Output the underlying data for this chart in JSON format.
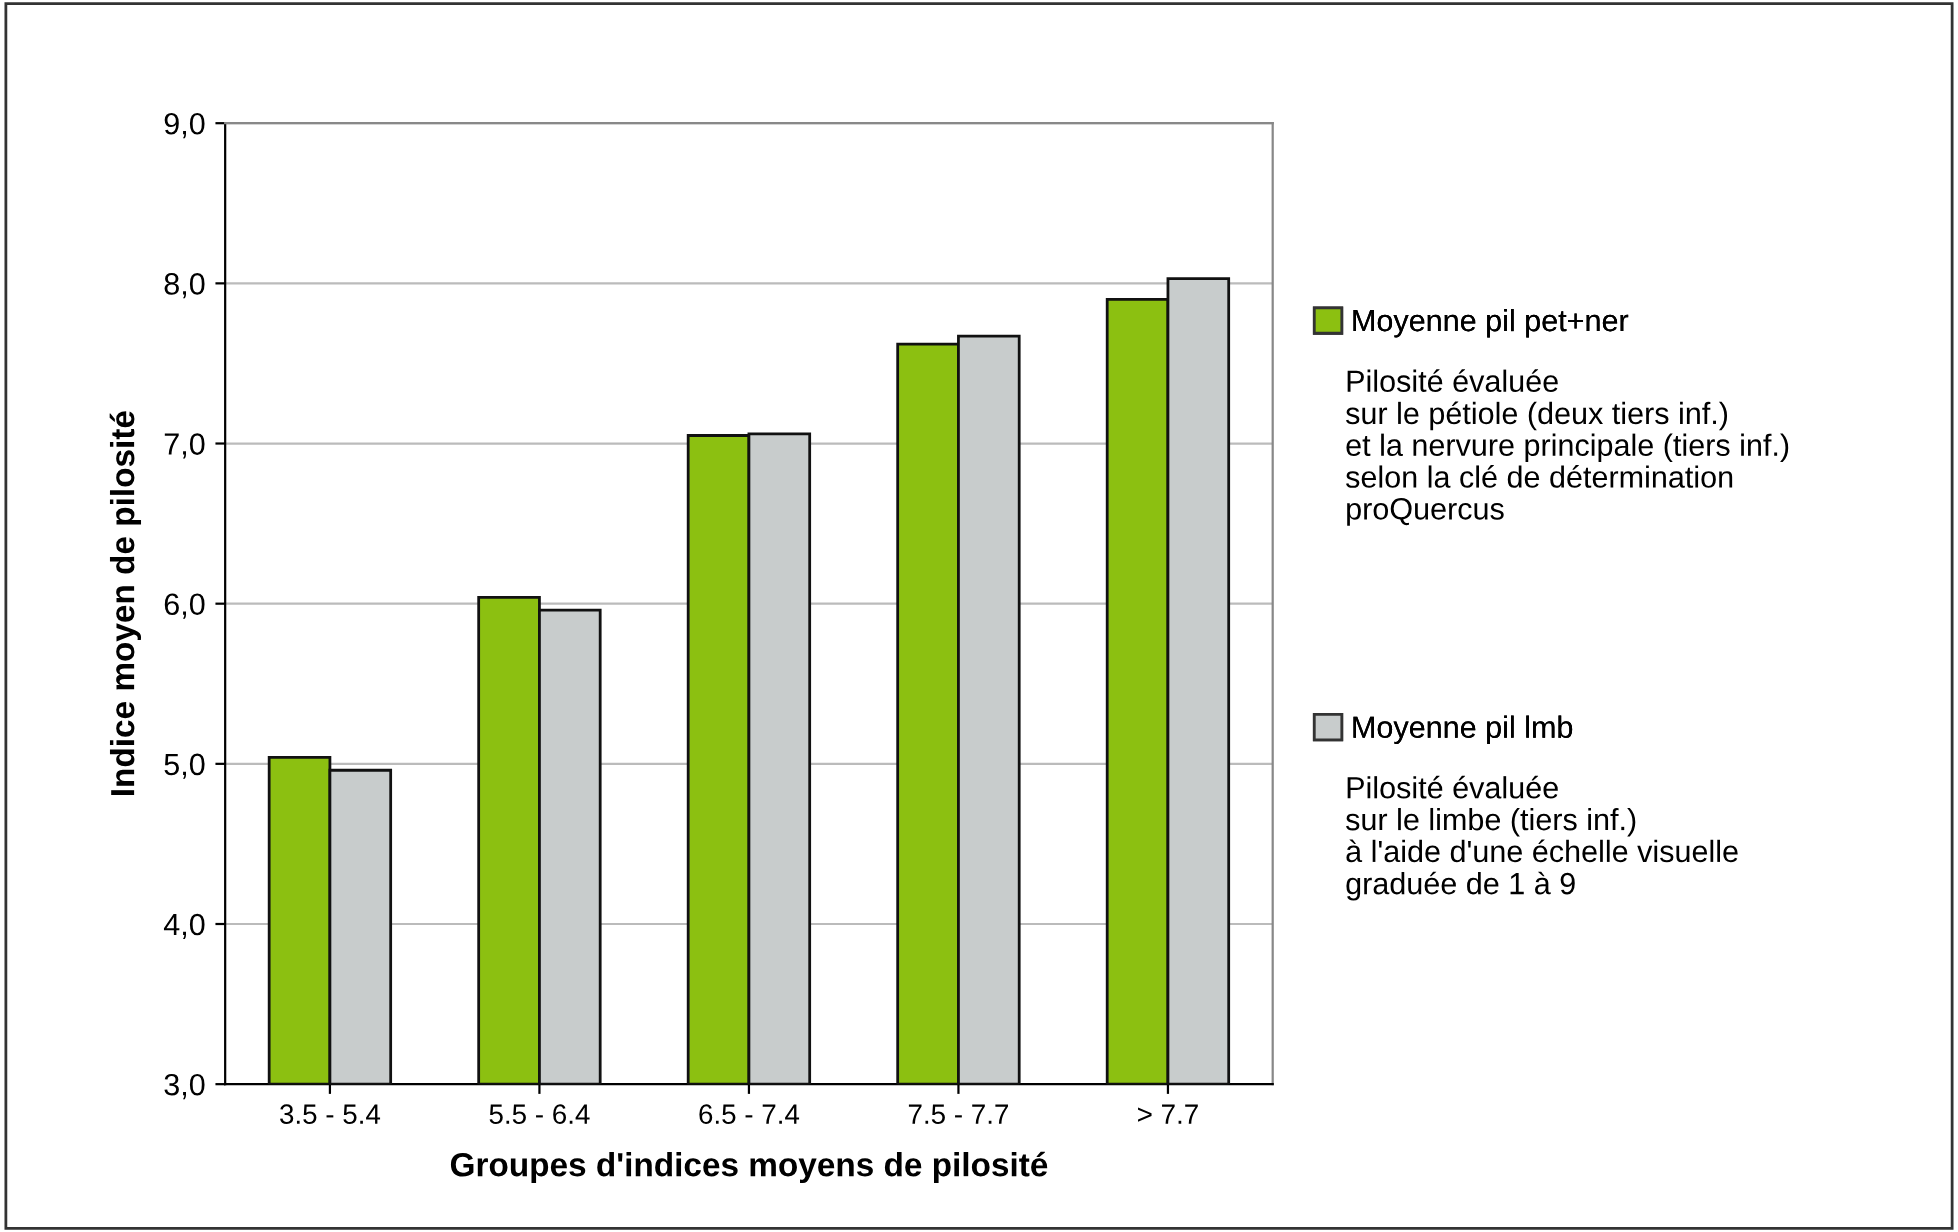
{
  "chart_data": {
    "type": "bar",
    "xlabel": "Groupes d'indices moyens de pilosité",
    "ylabel": "Indice moyen de pilosité",
    "categories": [
      "3.5 - 5.4",
      "5.5 - 6.4",
      "6.5 - 7.4",
      "7.5 - 7.7",
      "> 7.7"
    ],
    "series": [
      {
        "name": "Moyenne pil pet+ner",
        "color": "#8cc011",
        "values": [
          5.04,
          6.04,
          7.05,
          7.62,
          7.9
        ]
      },
      {
        "name": "Moyenne pil lmb",
        "color": "#c8cccc",
        "values": [
          4.96,
          5.96,
          7.06,
          7.67,
          8.03
        ]
      }
    ],
    "ylim": [
      3.0,
      9.0
    ],
    "yticks": [
      {
        "value": 3.0,
        "label": "3,0"
      },
      {
        "value": 4.0,
        "label": "4,0"
      },
      {
        "value": 5.0,
        "label": "5,0"
      },
      {
        "value": 6.0,
        "label": "6,0"
      },
      {
        "value": 7.0,
        "label": "7,0"
      },
      {
        "value": 8.0,
        "label": "8,0"
      },
      {
        "value": 9.0,
        "label": "9,0"
      }
    ],
    "grid": "y",
    "legend": "right",
    "annotations": [
      "Pilosité évaluée\nsur le pétiole (deux tiers inf.)\net la nervure principale (tiers inf.)\nselon la clé de détermination\nproQuercus",
      "Pilosité évaluée\nsur le limbe (tiers inf.)\nà l'aide d'une échelle visuelle\ngraduée de 1 à 9"
    ]
  }
}
